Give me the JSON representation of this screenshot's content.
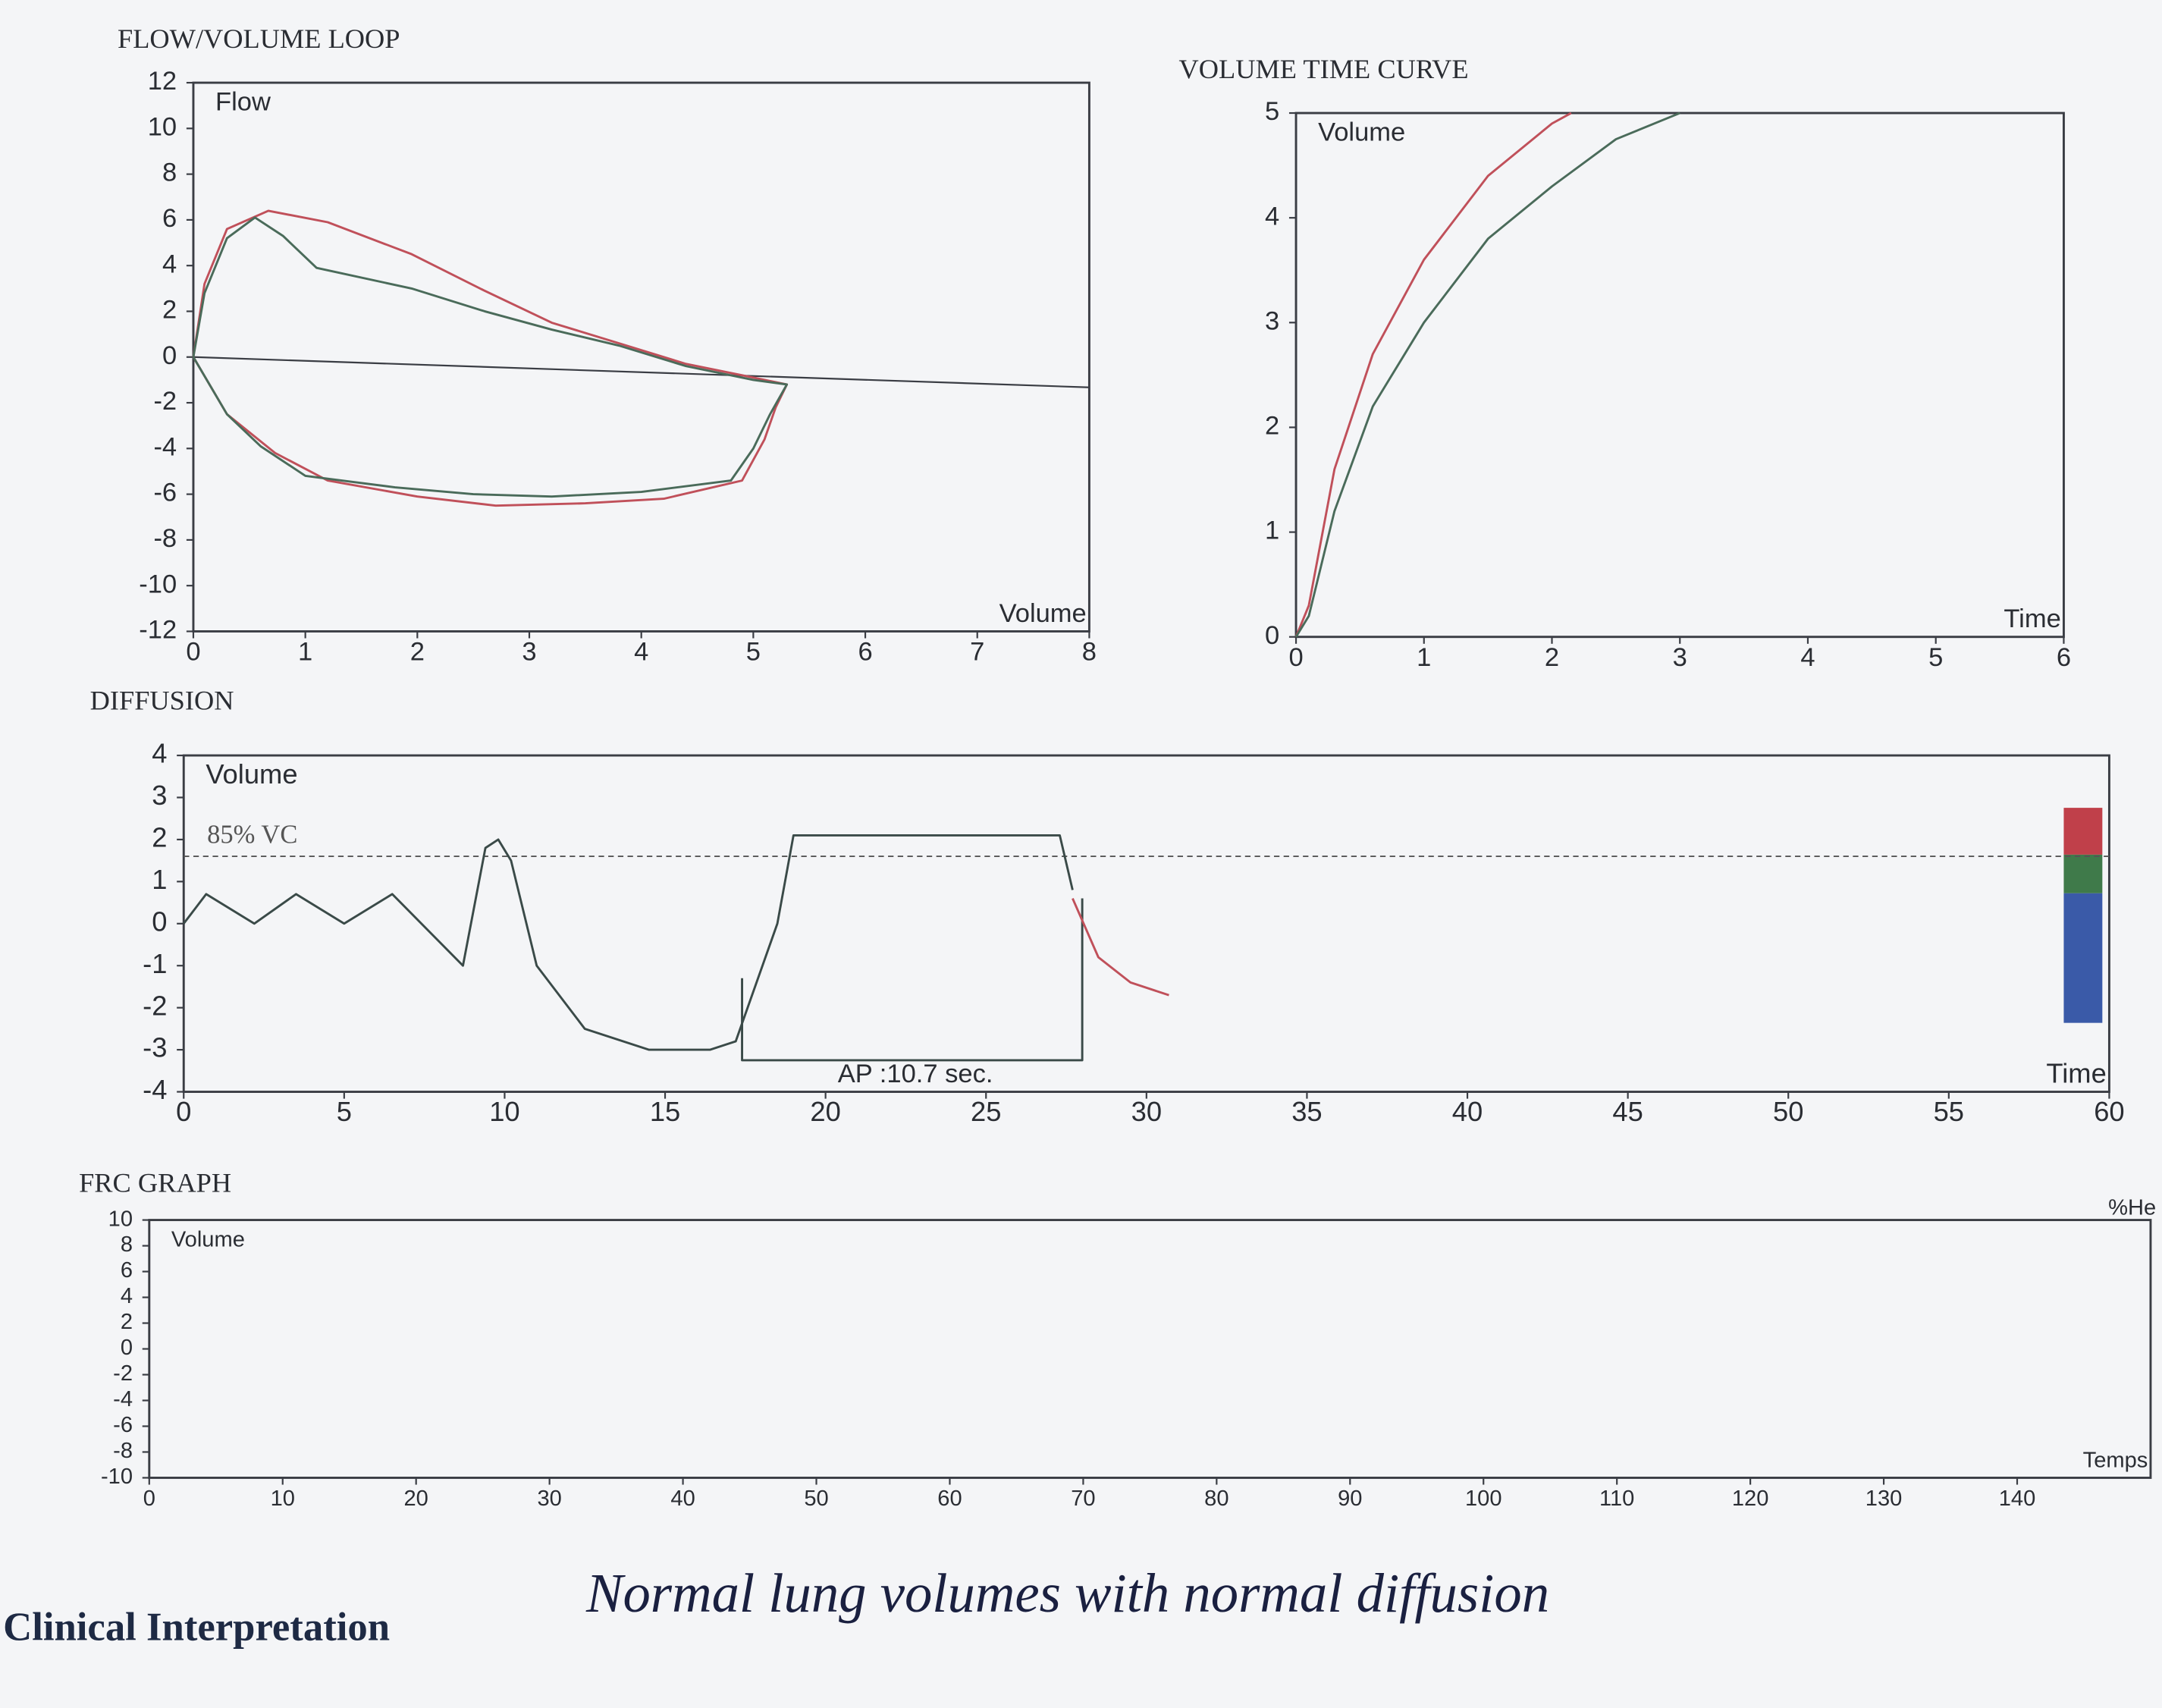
{
  "chart_data": [
    {
      "type": "line",
      "title": "FLOW/VOLUME LOOP",
      "y_label": "Flow",
      "x_label": "Volume",
      "xlim": [
        0,
        8
      ],
      "xticks": [
        0,
        1,
        2,
        3,
        4,
        5,
        6,
        7,
        8
      ],
      "ylim": [
        -12,
        12
      ],
      "yticks": [
        -12,
        -10,
        -8,
        -6,
        -4,
        -2,
        0,
        2,
        4,
        6,
        8,
        10,
        12
      ],
      "series": [
        {
          "color": "#c0505a",
          "x": [
            0,
            0.1,
            0.3,
            0.67,
            1.2,
            1.95,
            2.6,
            3.2,
            3.8,
            4.4,
            5.0,
            5.3,
            5.2,
            5.1,
            4.9,
            4.2,
            3.5,
            2.7,
            2.0,
            1.2,
            0.73,
            0.3,
            0
          ],
          "values": [
            0,
            3.2,
            5.6,
            6.4,
            5.9,
            4.5,
            2.9,
            1.5,
            0.6,
            -0.3,
            -0.9,
            -1.2,
            -2.2,
            -3.6,
            -5.4,
            -6.2,
            -6.4,
            -6.5,
            -6.1,
            -5.4,
            -4.2,
            -2.5,
            0
          ]
        },
        {
          "color": "#4a6b5a",
          "x": [
            0,
            0.1,
            0.3,
            0.55,
            0.8,
            1.1,
            1.95,
            2.6,
            3.2,
            3.8,
            4.4,
            5.0,
            5.3,
            5.15,
            5.0,
            4.8,
            4.0,
            3.2,
            2.5,
            1.8,
            1.0,
            0.6,
            0.3,
            0
          ],
          "values": [
            0,
            2.8,
            5.2,
            6.1,
            5.3,
            3.9,
            3.0,
            2.0,
            1.2,
            0.5,
            -0.4,
            -1.0,
            -1.2,
            -2.5,
            -4.0,
            -5.4,
            -5.9,
            -6.1,
            -6.0,
            -5.7,
            -5.2,
            -3.9,
            -2.5,
            0
          ]
        }
      ]
    },
    {
      "type": "line",
      "title": "VOLUME TIME CURVE",
      "y_label": "Volume",
      "x_label": "Time",
      "xlim": [
        0,
        6
      ],
      "xticks": [
        0,
        1,
        2,
        3,
        4,
        5,
        6
      ],
      "ylim": [
        0,
        5
      ],
      "yticks": [
        0,
        1,
        2,
        3,
        4,
        5
      ],
      "series": [
        {
          "color": "#c0505a",
          "x": [
            0,
            0.1,
            0.3,
            0.6,
            1,
            1.5,
            2,
            2.15
          ],
          "values": [
            0,
            0.3,
            1.6,
            2.7,
            3.6,
            4.4,
            4.9,
            5
          ]
        },
        {
          "color": "#4a6b5a",
          "x": [
            0,
            0.1,
            0.3,
            0.6,
            1,
            1.5,
            2,
            2.5,
            3
          ],
          "values": [
            0,
            0.2,
            1.2,
            2.2,
            3.0,
            3.8,
            4.3,
            4.75,
            5
          ]
        }
      ]
    },
    {
      "type": "line",
      "title": "DIFFUSION",
      "y_label": "Volume",
      "x_label": "Time",
      "xlim": [
        0,
        60
      ],
      "xticks": [
        0,
        5,
        10,
        15,
        20,
        25,
        30,
        35,
        40,
        45,
        50,
        55,
        60
      ],
      "ylim": [
        -4,
        4
      ],
      "yticks": [
        -4,
        -3,
        -2,
        -1,
        0,
        1,
        2,
        3,
        4
      ],
      "reference_line": {
        "label": "85% VC",
        "value": 1.6
      },
      "annotation": "AP :10.7 sec.",
      "series": [
        {
          "color": "#3a4a48",
          "x": [
            0,
            0.7,
            2.2,
            3.5,
            5,
            6.5,
            8.7,
            9.4,
            9.8,
            10.2,
            11,
            12.5,
            14.5,
            16.4,
            17.2,
            18.5,
            19,
            27.3,
            27.7
          ],
          "values": [
            0,
            0.7,
            0,
            0.7,
            0,
            0.7,
            -1,
            1.8,
            2.0,
            1.5,
            -1,
            -2.5,
            -3.0,
            -3.0,
            -2.8,
            0,
            2.1,
            2.1,
            0.8
          ]
        },
        {
          "color": "#3a4a48",
          "x": [
            17.4,
            17.4,
            28,
            28
          ],
          "values": [
            -1.3,
            -3.25,
            -3.25,
            0.6
          ]
        },
        {
          "color": "#c0505a",
          "x": [
            27.7,
            28.5,
            29.5,
            30.7
          ],
          "values": [
            0.6,
            -0.8,
            -1.4,
            -1.7
          ]
        }
      ]
    },
    {
      "type": "line",
      "title": "FRC GRAPH",
      "y_label": "Volume",
      "x_label": "Temps",
      "y2_label": "%He",
      "xlim": [
        0,
        150
      ],
      "xticks": [
        0,
        10,
        20,
        30,
        40,
        50,
        60,
        70,
        80,
        90,
        100,
        110,
        120,
        130,
        140
      ],
      "ylim": [
        -10,
        10
      ],
      "yticks": [
        -10,
        -8,
        -6,
        -4,
        -2,
        0,
        2,
        4,
        6,
        8,
        10
      ],
      "series": []
    }
  ],
  "footer": {
    "label": "Clinical Interpretation",
    "note": "Normal lung volumes with normal diffusion"
  }
}
